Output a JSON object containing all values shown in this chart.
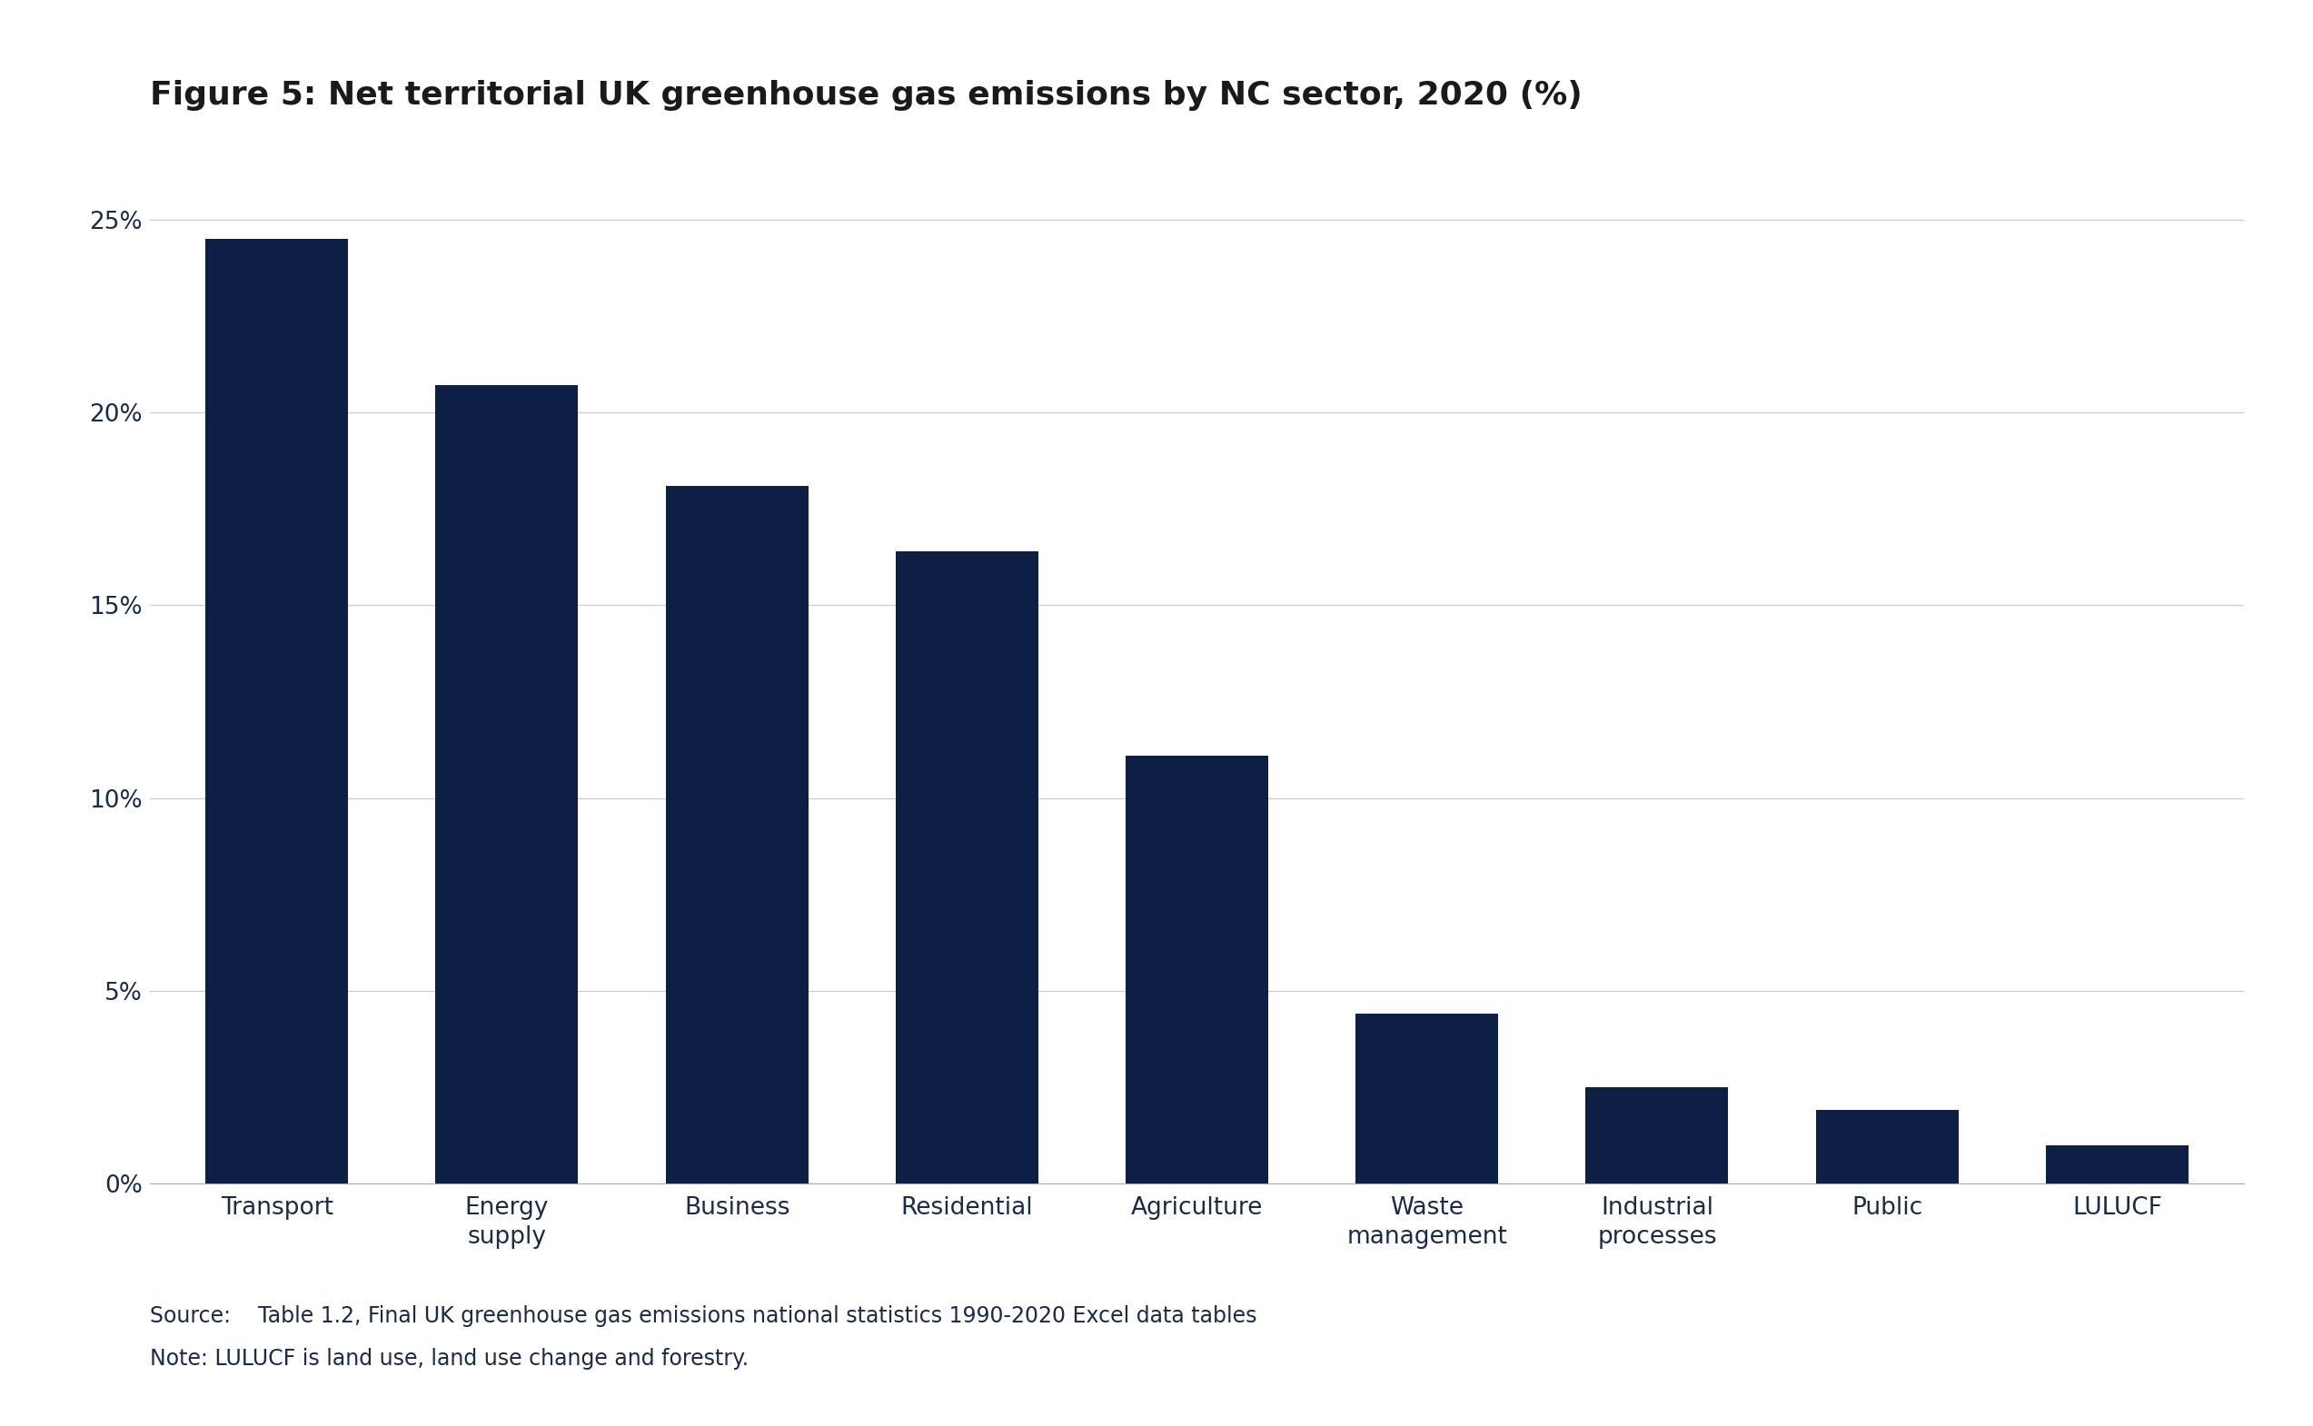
{
  "title": "Figure 5: Net territorial UK greenhouse gas emissions by NC sector, 2020 (%)",
  "categories": [
    "Transport",
    "Energy\nsupply",
    "Business",
    "Residential",
    "Agriculture",
    "Waste\nmanagement",
    "Industrial\nprocesses",
    "Public",
    "LULUCF"
  ],
  "values": [
    24.5,
    20.7,
    18.1,
    16.4,
    11.1,
    4.4,
    2.5,
    1.9,
    1.0
  ],
  "bar_color": "#0d1f45",
  "yticks": [
    0,
    5,
    10,
    15,
    20,
    25
  ],
  "ytick_labels": [
    "0%",
    "5%",
    "10%",
    "15%",
    "20%",
    "25%"
  ],
  "ylim": [
    0,
    27
  ],
  "source_text": "Source:    Table 1.2, Final UK greenhouse gas emissions national statistics 1990-2020 Excel data tables",
  "note_text": "Note: LULUCF is land use, land use change and forestry.",
  "background_color": "#ffffff",
  "title_fontsize": 26,
  "tick_fontsize": 19,
  "source_fontsize": 17,
  "bar_width": 0.62
}
